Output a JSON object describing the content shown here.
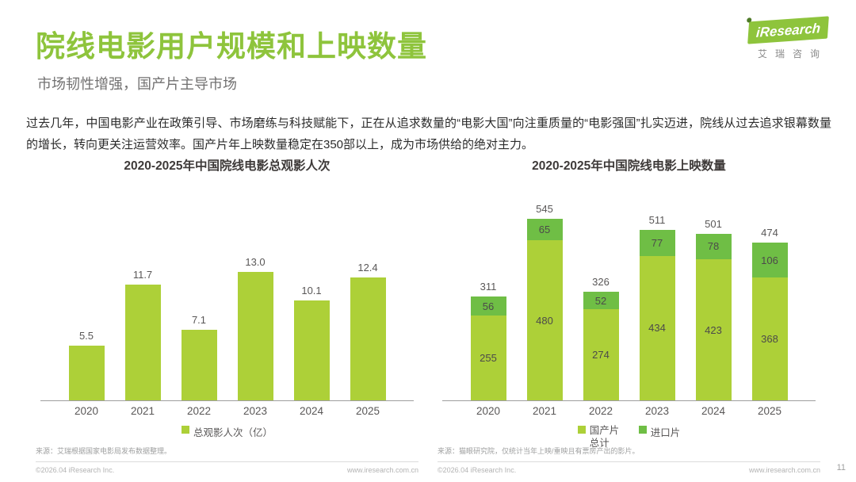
{
  "page": {
    "title": "院线电影用户规模和上映数量",
    "subtitle": "市场韧性增强，国产片主导市场",
    "body": "过去几年，中国电影产业在政策引导、市场磨练与科技赋能下，正在从追求数量的“电影大国”向注重质量的“电影强国”扎实迈进，院线从过去追求银幕数量的增长，转向更关注运营效率。国产片年上映数量稳定在350部以上，成为市场供给的绝对主力。",
    "page_number": "11"
  },
  "logo": {
    "brand": "iResearch",
    "brand_cn": "艾瑞咨询"
  },
  "colors": {
    "accent_green": "#8EC43C",
    "bar_light": "#ADD038",
    "bar_dark": "#6FBE45",
    "text_dark": "#3E3A39",
    "text_gray": "#595757"
  },
  "footers": [
    {
      "source": "来源：艾瑞根据国家电影局发布数据整理。",
      "copyright": "©2026.04 iResearch Inc.",
      "site": "www.iresearch.com.cn"
    },
    {
      "source": "来源：猫眼研究院，仅统计当年上映/重映且有票房产出的影片。",
      "copyright": "©2026.04 iResearch Inc.",
      "site": "www.iresearch.com.cn"
    }
  ],
  "chart_data": [
    {
      "type": "bar",
      "title": "2020-2025年中国院线电影总观影人次",
      "categories": [
        "2020",
        "2021",
        "2022",
        "2023",
        "2024",
        "2025"
      ],
      "values": [
        5.5,
        11.7,
        7.1,
        13.0,
        10.1,
        12.4
      ],
      "labels": [
        "5.5",
        "11.7",
        "7.1",
        "13.0",
        "10.1",
        "12.4"
      ],
      "color": "#ADD038",
      "legend": [
        "总观影人次（亿）"
      ],
      "ylabel": "总观影人次（亿）",
      "xlabel": "",
      "ylim": [
        0,
        14
      ],
      "grid": false,
      "legend_position": "bottom"
    },
    {
      "type": "bar",
      "stacked": true,
      "title": "2020-2025年中国院线电影上映数量",
      "categories": [
        "2020",
        "2021",
        "2022",
        "2023",
        "2024",
        "2025"
      ],
      "series": [
        {
          "name": "国产片总计",
          "values": [
            255,
            480,
            274,
            434,
            423,
            368
          ],
          "color": "#ADD038"
        },
        {
          "name": "进口片",
          "values": [
            56,
            65,
            52,
            77,
            78,
            106
          ],
          "color": "#6FBE45"
        }
      ],
      "totals": [
        311,
        545,
        326,
        511,
        501,
        474
      ],
      "legend": [
        "国产片总计",
        "进口片"
      ],
      "xlabel": "",
      "ylim": [
        0,
        600
      ],
      "grid": false,
      "legend_position": "bottom"
    }
  ]
}
